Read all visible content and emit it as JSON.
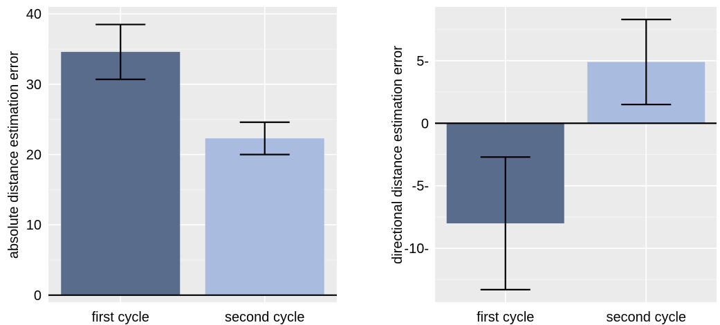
{
  "chart_data": [
    {
      "type": "bar",
      "categories": [
        "first cycle",
        "second cycle"
      ],
      "values": [
        34.6,
        22.3
      ],
      "error_low": [
        30.7,
        20.0
      ],
      "error_high": [
        38.5,
        24.6
      ],
      "ylabel": "absolute distance estimation error",
      "xlabel": "",
      "ylim": [
        -1,
        41
      ],
      "yticks": [
        0,
        10,
        20,
        30,
        40
      ],
      "ytick_labels": [
        "0",
        "10",
        "20",
        "30",
        "40"
      ],
      "colors": [
        "#5a6c8c",
        "#aabbe0"
      ],
      "background": "#ebebeb",
      "grid": true
    },
    {
      "type": "bar",
      "categories": [
        "first cycle",
        "second cycle"
      ],
      "values": [
        -8.0,
        4.9
      ],
      "error_low": [
        -13.3,
        1.5
      ],
      "error_high": [
        -2.7,
        8.3
      ],
      "ylabel": "directional distance estimation error",
      "xlabel": "",
      "ylim": [
        -14.3,
        9.3
      ],
      "yticks": [
        -10,
        -5,
        0,
        5
      ],
      "ytick_labels": [
        "-10-",
        "-5-",
        "0",
        "5-"
      ],
      "colors": [
        "#5a6c8c",
        "#aabbe0"
      ],
      "background": "#ebebeb",
      "grid": true
    }
  ]
}
